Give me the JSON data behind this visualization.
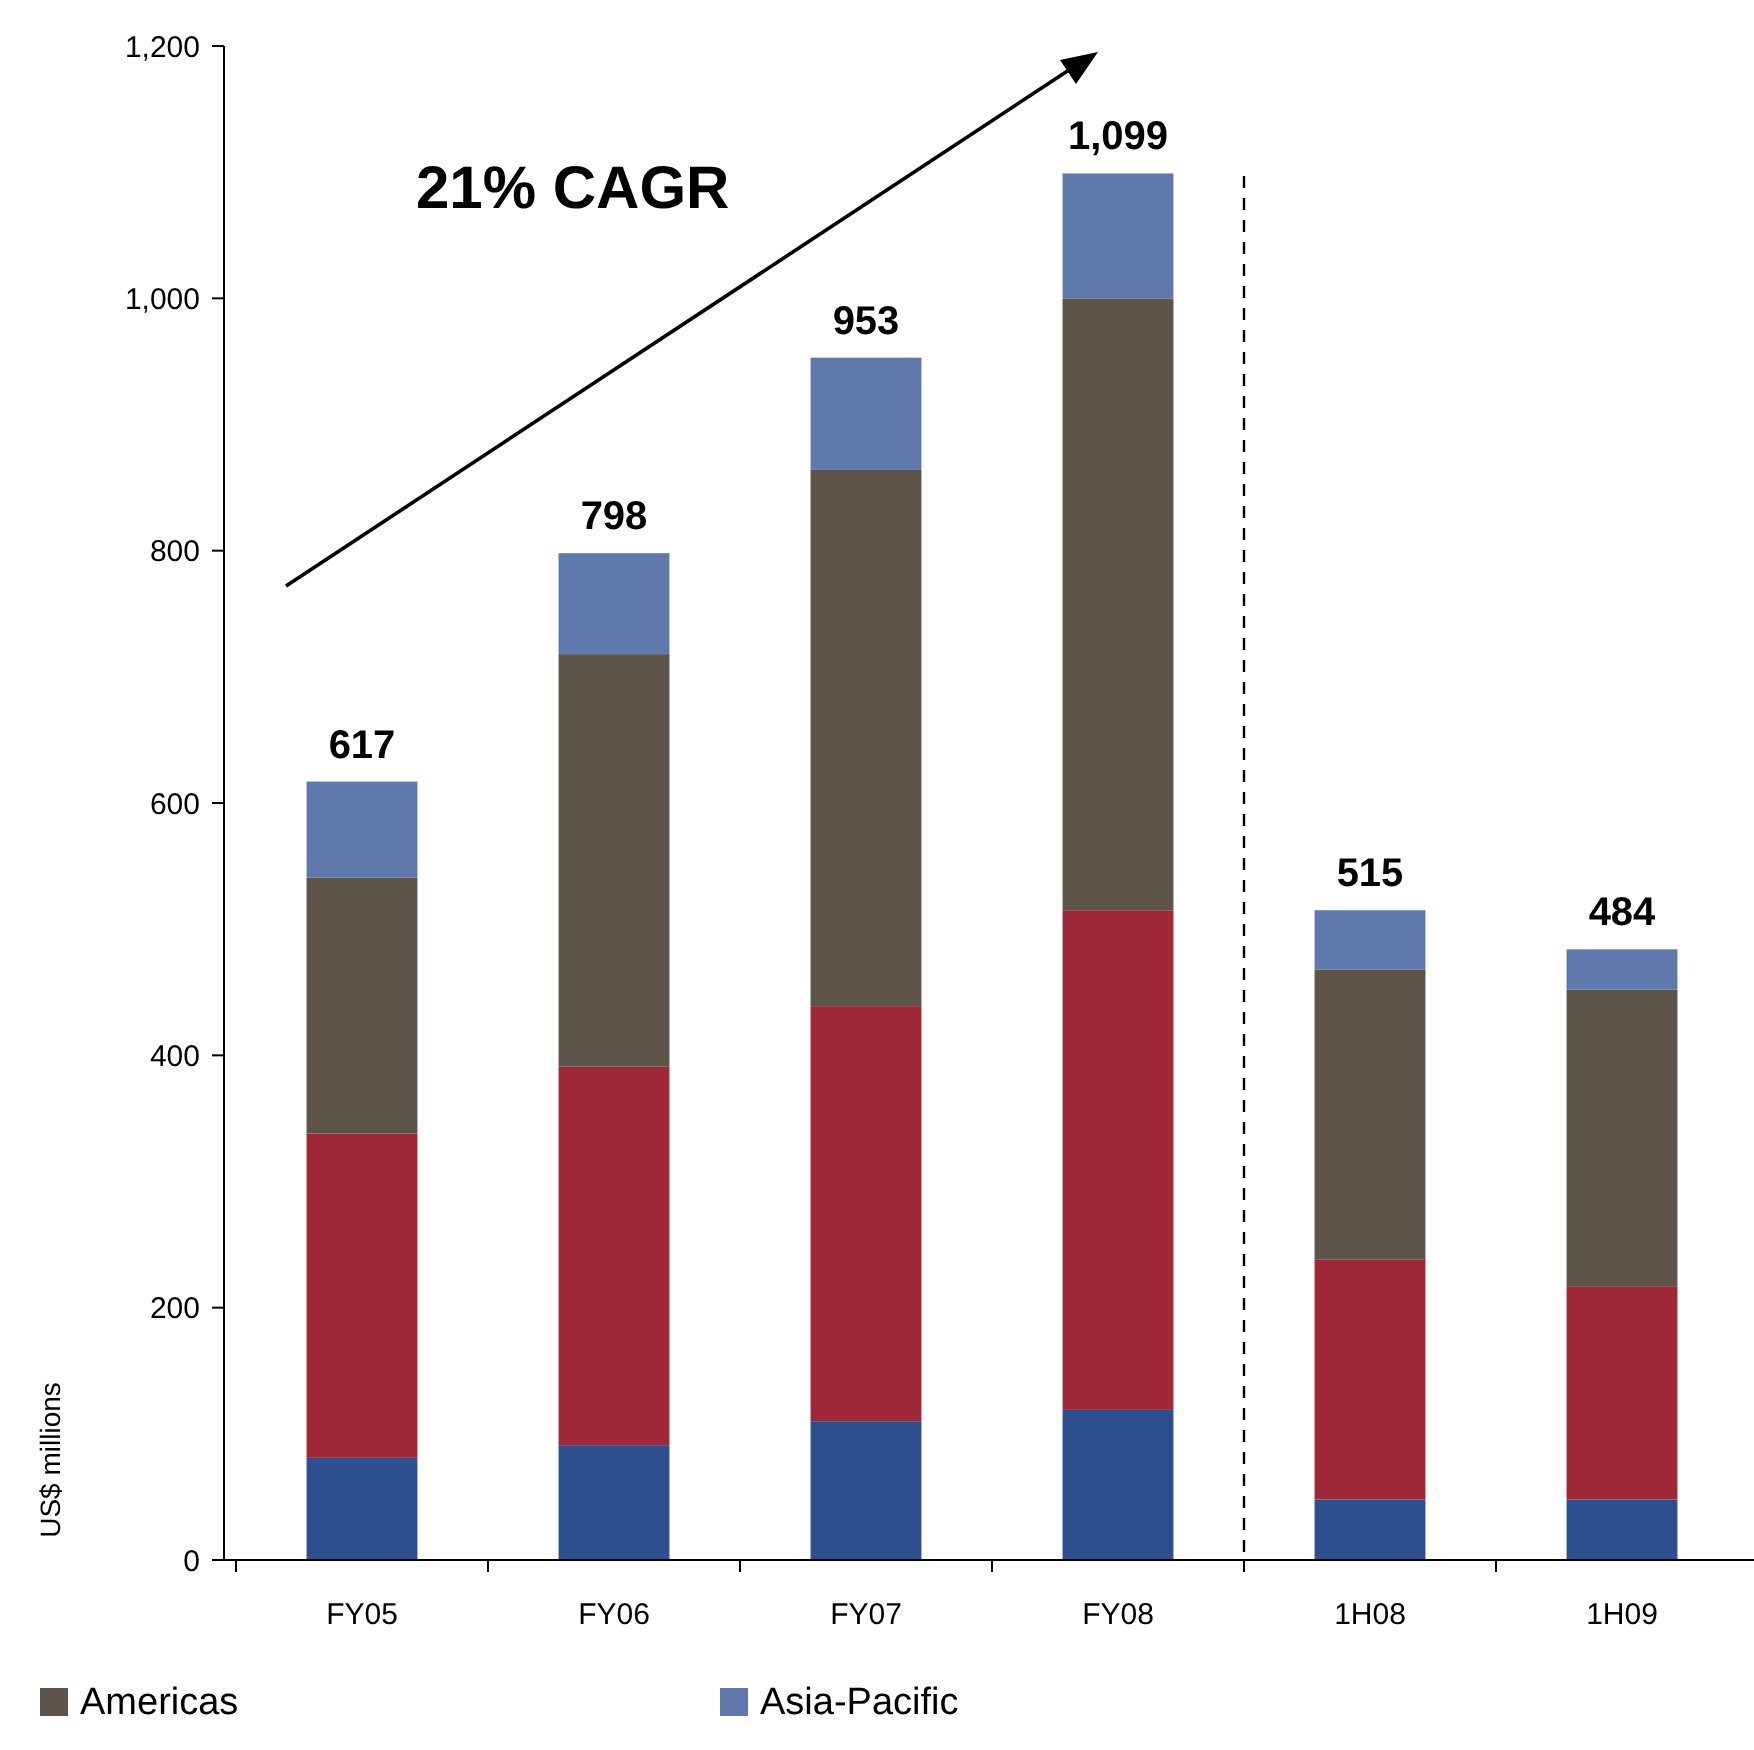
{
  "chart_data": {
    "type": "bar",
    "stacked": true,
    "ylabel": "US$ millions",
    "categories": [
      "FY05",
      "FY06",
      "FY07",
      "FY08",
      "1H08",
      "1H09"
    ],
    "series": [
      {
        "color": "#2e4f8f",
        "values": [
          81,
          91,
          110,
          119,
          48,
          48
        ]
      },
      {
        "color": "#9e2738",
        "values": [
          257,
          300,
          329,
          396,
          190,
          169
        ]
      },
      {
        "name": "Americas",
        "color": "#5e544a",
        "values": [
          203,
          327,
          425,
          485,
          230,
          235
        ]
      },
      {
        "name": "Asia-Pacific",
        "color": "#6079ad",
        "values": [
          76,
          80,
          89,
          99,
          47,
          32
        ]
      }
    ],
    "totals": [
      "617",
      "798",
      "953",
      "1,099",
      "515",
      "484"
    ],
    "ylim": [
      0,
      1200
    ],
    "yticks": [
      0,
      200,
      400,
      600,
      800,
      {
        "value": 1000,
        "label": "1,000"
      },
      {
        "value": 1200,
        "label": "1,200"
      }
    ],
    "annotations": [
      "21% CAGR"
    ],
    "legend": "bottom",
    "grid": false
  }
}
